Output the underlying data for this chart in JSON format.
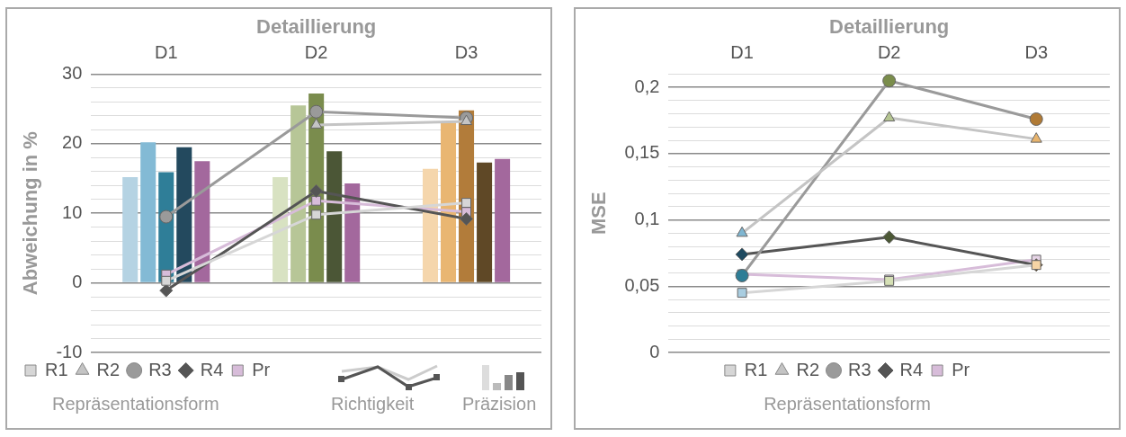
{
  "chart_data": [
    {
      "type": "bar",
      "xlabel": "Detaillierung",
      "ylabel": "Abweichung in %",
      "legend_title": "Repräsentationsform",
      "legend": "bottom",
      "grid": "y",
      "categories": [
        "D1",
        "D2",
        "D3"
      ],
      "ylim": [
        -10,
        30
      ],
      "yticks": [
        -10,
        {
          "value": -8,
          "label": null
        },
        {
          "value": -6,
          "label": null
        },
        {
          "value": -4,
          "label": null
        },
        {
          "value": -2,
          "label": null
        },
        0,
        {
          "value": 2,
          "label": null
        },
        {
          "value": 4,
          "label": null
        },
        {
          "value": 6,
          "label": null
        },
        {
          "value": 8,
          "label": null
        },
        10,
        {
          "value": 12,
          "label": null
        },
        {
          "value": 14,
          "label": null
        },
        {
          "value": 16,
          "label": null
        },
        {
          "value": 18,
          "label": null
        },
        20,
        {
          "value": 22,
          "label": null
        },
        {
          "value": 24,
          "label": null
        },
        {
          "value": 26,
          "label": null
        },
        {
          "value": 28,
          "label": null
        },
        30
      ],
      "annotations": [
        "Richtigkeit",
        "Präzision"
      ],
      "series": [
        {
          "type": "bar",
          "colors": [
            "#b5d3e3",
            "#d8e2c2",
            "#f5d6ac"
          ],
          "values": [
            15.2,
            15.2,
            16.4
          ]
        },
        {
          "type": "bar",
          "colors": [
            "#83bad5",
            "#b7c697",
            "#e9b672"
          ],
          "values": [
            20.2,
            25.5,
            23
          ]
        },
        {
          "type": "bar",
          "colors": [
            "#2f7e98",
            "#7a8c4d",
            "#b27c3a"
          ],
          "values": [
            15.9,
            27.2,
            24.8
          ]
        },
        {
          "type": "bar",
          "colors": [
            "#23495e",
            "#4b5636",
            "#5f4826"
          ],
          "values": [
            19.5,
            18.9,
            17.3
          ]
        },
        {
          "type": "bar",
          "colors": [
            "#a3689d",
            "#a3689d",
            "#a3689d"
          ],
          "values": [
            17.5,
            14.3,
            17.8
          ]
        },
        {
          "type": "line",
          "name": "R1",
          "color": "#d6d6d6",
          "marker": "square",
          "values": [
            0.3,
            9.8,
            11.5
          ]
        },
        {
          "type": "line",
          "name": "R2",
          "color": "#c4c4c4",
          "marker": "triangle",
          "values": [
            null,
            22.7,
            23.2
          ]
        },
        {
          "type": "line",
          "name": "R3",
          "color": "#9a9a9a",
          "marker": "circle",
          "values": [
            9.5,
            24.6,
            23.7
          ]
        },
        {
          "type": "line",
          "name": "R4",
          "color": "#555555",
          "marker": "diamond",
          "values": [
            -1.1,
            13.2,
            9.2
          ]
        },
        {
          "type": "line",
          "name": "Pr",
          "color": "#d7bcd9",
          "marker": "square",
          "values": [
            1.2,
            11.8,
            10.2
          ]
        }
      ]
    },
    {
      "type": "line",
      "xlabel": "Detaillierung",
      "ylabel": "MSE",
      "legend_title": "Repräsentationsform",
      "legend": "bottom",
      "grid": "y",
      "categories": [
        "D1",
        "D2",
        "D3"
      ],
      "ylim": [
        0,
        0.21
      ],
      "yticks": [
        0,
        {
          "value": 0.01,
          "label": null
        },
        {
          "value": 0.02,
          "label": null
        },
        {
          "value": 0.03,
          "label": null
        },
        {
          "value": 0.04,
          "label": null
        },
        {
          "value": 0.05,
          "label": "0,05"
        },
        {
          "value": 0.06,
          "label": null
        },
        {
          "value": 0.07,
          "label": null
        },
        {
          "value": 0.08,
          "label": null
        },
        {
          "value": 0.09,
          "label": null
        },
        {
          "value": 0.1,
          "label": "0,1"
        },
        {
          "value": 0.11,
          "label": null
        },
        {
          "value": 0.12,
          "label": null
        },
        {
          "value": 0.13,
          "label": null
        },
        {
          "value": 0.14,
          "label": null
        },
        {
          "value": 0.15,
          "label": "0,15"
        },
        {
          "value": 0.16,
          "label": null
        },
        {
          "value": 0.17,
          "label": null
        },
        {
          "value": 0.18,
          "label": null
        },
        {
          "value": 0.19,
          "label": null
        },
        {
          "value": 0.2,
          "label": "0,2"
        },
        {
          "value": 0.21,
          "label": null
        }
      ],
      "series": [
        {
          "name": "R1",
          "color": "#d6d6d6",
          "colors": [
            "#a9cde0",
            "#d5e0b5",
            "#f5d4a5"
          ],
          "marker": "square",
          "values": [
            0.045,
            0.054,
            0.066
          ]
        },
        {
          "name": "R2",
          "color": "#c4c4c4",
          "colors": [
            "#7fb6d1",
            "#b5c591",
            "#e8b46d"
          ],
          "marker": "triangle",
          "values": [
            0.09,
            0.177,
            0.161
          ]
        },
        {
          "name": "R3",
          "color": "#9a9a9a",
          "colors": [
            "#2e7d96",
            "#7a8d4b",
            "#b07a35"
          ],
          "marker": "circle",
          "values": [
            0.058,
            0.205,
            0.176
          ]
        },
        {
          "name": "R4",
          "color": "#555555",
          "colors": [
            "#1f4a60",
            "#4b5735",
            "#5e4726"
          ],
          "marker": "diamond",
          "values": [
            0.074,
            0.087,
            0.066
          ]
        },
        {
          "name": "Pr",
          "color": "#d7bcd9",
          "colors": [
            "#e6d4e6",
            "#e6d4e6",
            "#e6d4e6"
          ],
          "marker": "square",
          "values": [
            0.059,
            0.055,
            0.07
          ]
        }
      ]
    }
  ]
}
